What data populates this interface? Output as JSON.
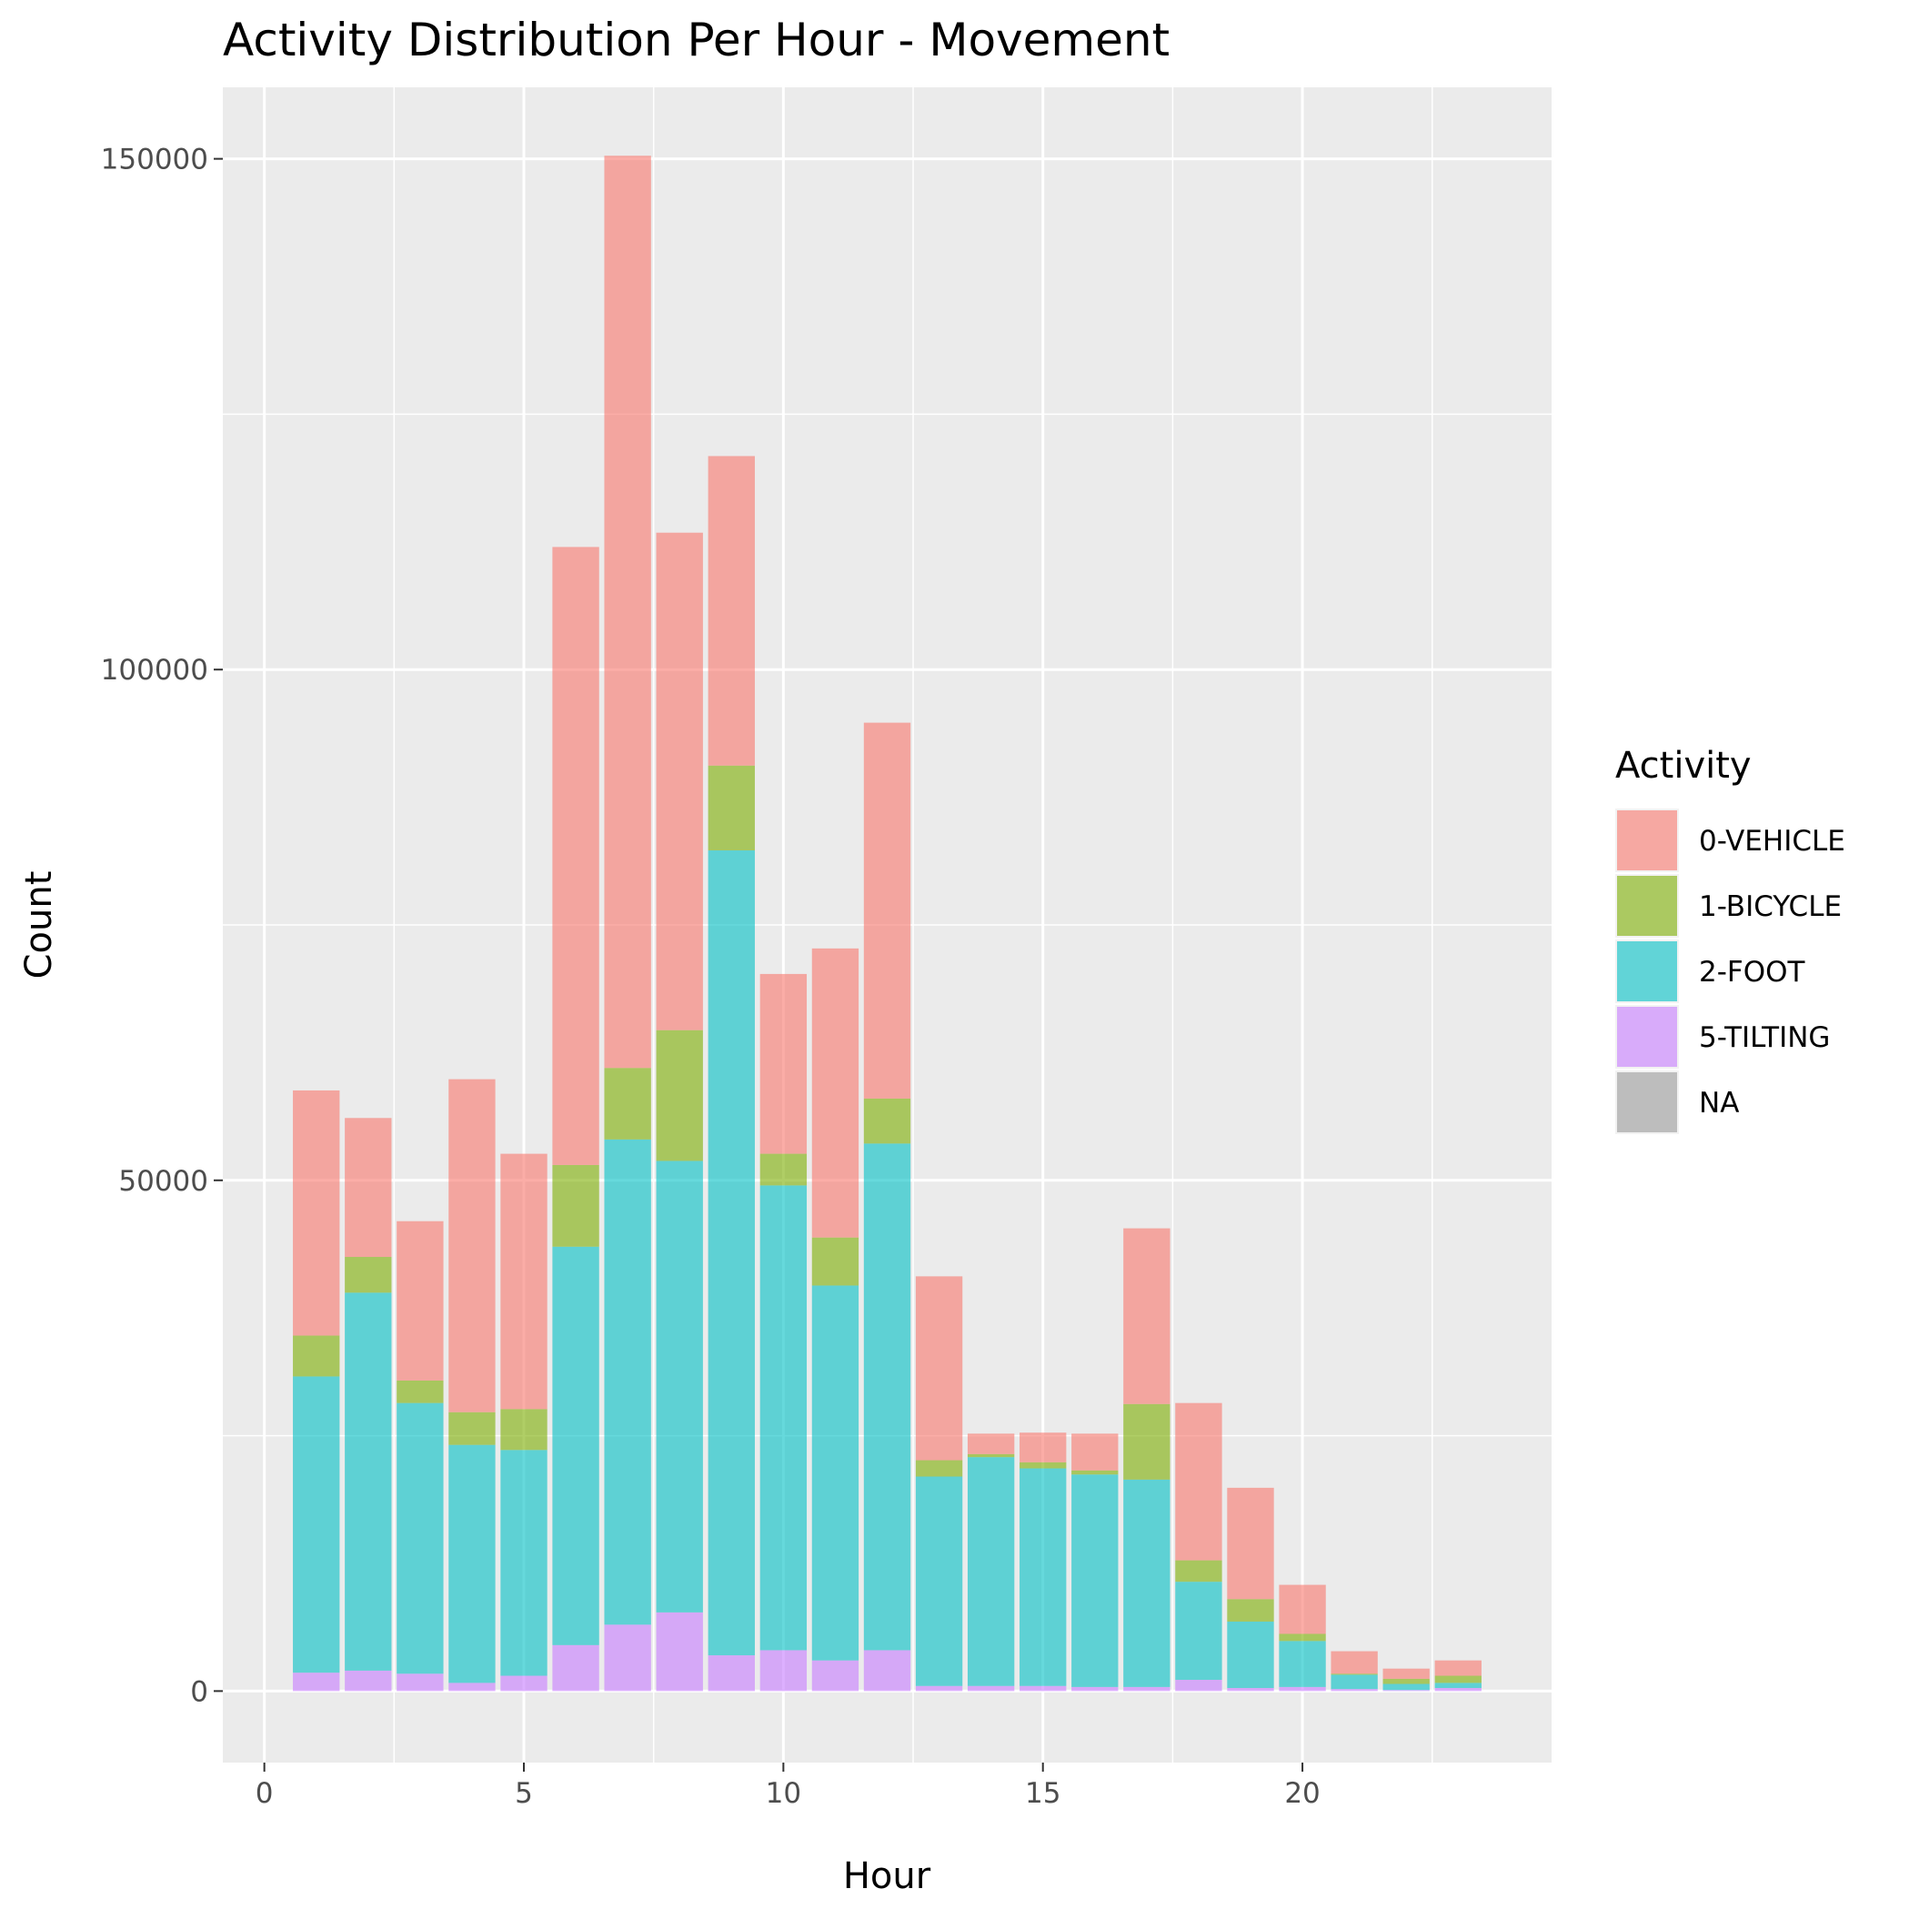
{
  "chart_data": {
    "type": "bar",
    "stacked": true,
    "title": "Activity Distribution Per Hour - Movement",
    "xlabel": "Hour",
    "ylabel": "Count",
    "xlim": [
      -0.8,
      24.8
    ],
    "ylim": [
      -7000,
      157000
    ],
    "x_ticks": [
      0,
      5,
      10,
      15,
      20
    ],
    "y_ticks": [
      0,
      50000,
      100000,
      150000
    ],
    "grid": true,
    "legend": {
      "title": "Activity",
      "position": "right"
    },
    "x": [
      1,
      2,
      3,
      4,
      5,
      6,
      7,
      8,
      9,
      10,
      11,
      12,
      13,
      14,
      15,
      16,
      17,
      18,
      19,
      20,
      21,
      22,
      23
    ],
    "series": [
      {
        "name": "5-TILTING",
        "color": "#C77CFF",
        "values": [
          1800,
          2000,
          1700,
          800,
          1500,
          4500,
          6500,
          7700,
          3500,
          4000,
          3000,
          4000,
          500,
          500,
          500,
          400,
          400,
          1100,
          300,
          400,
          200,
          100,
          300
        ]
      },
      {
        "name": "2-FOOT",
        "color": "#00BFC4",
        "values": [
          29000,
          37000,
          26500,
          23300,
          22100,
          39000,
          47500,
          44200,
          78800,
          45500,
          36700,
          49600,
          20500,
          22400,
          21300,
          20800,
          20300,
          9600,
          6500,
          4500,
          1400,
          600,
          500
        ]
      },
      {
        "name": "1-BICYCLE",
        "color": "#7CAE00",
        "values": [
          4000,
          3500,
          2200,
          3200,
          4000,
          8000,
          7000,
          12800,
          8300,
          3100,
          4700,
          4400,
          1600,
          300,
          600,
          400,
          7400,
          2100,
          2200,
          700,
          100,
          500,
          700
        ]
      },
      {
        "name": "0-VEHICLE",
        "color": "#F8766D",
        "values": [
          24000,
          13600,
          15600,
          32600,
          25000,
          60500,
          89300,
          48700,
          30300,
          17600,
          28300,
          36800,
          18000,
          2000,
          2900,
          3600,
          17200,
          15400,
          10900,
          4800,
          2200,
          1000,
          1500
        ]
      },
      {
        "name": "NA",
        "color": "#999999",
        "values": [
          0,
          0,
          0,
          0,
          0,
          0,
          0,
          0,
          0,
          0,
          0,
          0,
          0,
          0,
          0,
          0,
          0,
          0,
          0,
          0,
          0,
          0,
          0
        ]
      }
    ],
    "legend_order": [
      "0-VEHICLE",
      "1-BICYCLE",
      "2-FOOT",
      "5-TILTING",
      "NA"
    ],
    "bar_alpha": 0.6,
    "panel_color": "#EBEBEB"
  }
}
